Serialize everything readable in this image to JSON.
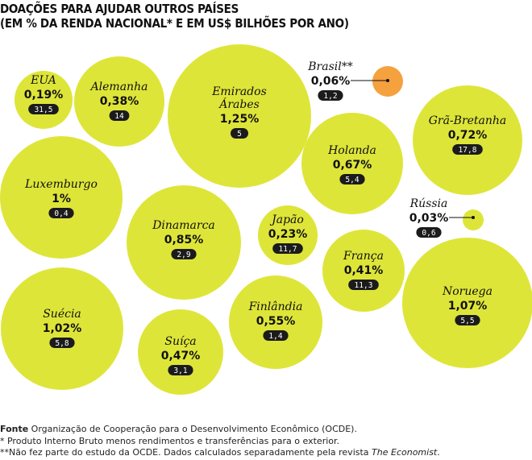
{
  "header": {
    "title_line1": "DOAÇÕES PARA AJUDAR OUTROS PAÍSES",
    "title_line2": "(EM % DA RENDA NACIONAL* E EM US$ BILHÕES POR ANO)"
  },
  "chart_data": {
    "type": "bubble",
    "title": "DOAÇÕES PARA AJUDAR OUTROS PAÍSES (EM % DA RENDA NACIONAL* E EM US$ BILHÕES POR ANO)",
    "colors": {
      "default": "#dee539",
      "highlight": "#f4a13e",
      "pill": "#1b1b1b"
    },
    "points": [
      {
        "country": "EUA",
        "pct": 0.19,
        "pct_label": "0,19%",
        "usd_bn": 31.5,
        "usd_label": "31,5"
      },
      {
        "country": "Alemanha",
        "pct": 0.38,
        "pct_label": "0,38%",
        "usd_bn": 14,
        "usd_label": "14"
      },
      {
        "country": "Emirados Árabes",
        "name_line1": "Emirados",
        "name_line2": "Árabes",
        "pct": 1.25,
        "pct_label": "1,25%",
        "usd_bn": 5,
        "usd_label": "5"
      },
      {
        "country": "Brasil**",
        "pct": 0.06,
        "pct_label": "0,06%",
        "usd_bn": 1.2,
        "usd_label": "1,2",
        "highlight": true
      },
      {
        "country": "Grã-Bretanha",
        "pct": 0.72,
        "pct_label": "0,72%",
        "usd_bn": 17.8,
        "usd_label": "17,8"
      },
      {
        "country": "Holanda",
        "pct": 0.67,
        "pct_label": "0,67%",
        "usd_bn": 5.4,
        "usd_label": "5,4"
      },
      {
        "country": "Luxemburgo",
        "pct": 1.0,
        "pct_label": "1%",
        "usd_bn": 0.4,
        "usd_label": "0,4"
      },
      {
        "country": "Rússia",
        "pct": 0.03,
        "pct_label": "0,03%",
        "usd_bn": 0.6,
        "usd_label": "0,6"
      },
      {
        "country": "Dinamarca",
        "pct": 0.85,
        "pct_label": "0,85%",
        "usd_bn": 2.9,
        "usd_label": "2,9"
      },
      {
        "country": "Japão",
        "pct": 0.23,
        "pct_label": "0,23%",
        "usd_bn": 11.7,
        "usd_label": "11,7"
      },
      {
        "country": "França",
        "pct": 0.41,
        "pct_label": "0,41%",
        "usd_bn": 11.3,
        "usd_label": "11,3"
      },
      {
        "country": "Noruega",
        "pct": 1.07,
        "pct_label": "1,07%",
        "usd_bn": 5.5,
        "usd_label": "5,5"
      },
      {
        "country": "Suécia",
        "pct": 1.02,
        "pct_label": "1,02%",
        "usd_bn": 5.8,
        "usd_label": "5,8"
      },
      {
        "country": "Finlândia",
        "pct": 0.55,
        "pct_label": "0,55%",
        "usd_bn": 1.4,
        "usd_label": "1,4"
      },
      {
        "country": "Suíça",
        "pct": 0.47,
        "pct_label": "0,47%",
        "usd_bn": 3.1,
        "usd_label": "3,1"
      }
    ]
  },
  "footer": {
    "source_label": "Fonte",
    "source_text": " Organização de Cooperação para o Desenvolvimento Econômico (OCDE).",
    "note1": "* Produto Interno Bruto menos rendimentos e transferências para o exterior.",
    "note2_prefix": "**Não fez parte do estudo da OCDE. Dados calculados separadamente pela revista ",
    "note2_italic": "The Economist",
    "note2_suffix": "."
  }
}
